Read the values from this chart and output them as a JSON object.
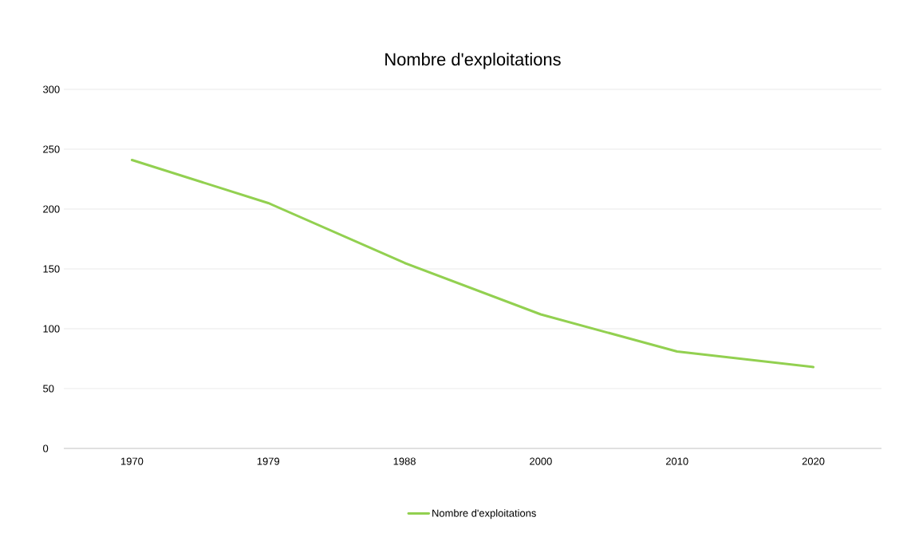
{
  "chart_data": {
    "type": "line",
    "title": "Nombre d'exploitations",
    "categories": [
      "1970",
      "1979",
      "1988",
      "2000",
      "2010",
      "2020"
    ],
    "series": [
      {
        "name": "Nombre d'exploitations",
        "color": "#92d050",
        "values": [
          241,
          205,
          155,
          112,
          81,
          68
        ]
      }
    ],
    "ylim": [
      0,
      300
    ],
    "yticks": [
      0,
      50,
      100,
      150,
      200,
      250,
      300
    ],
    "grid": "y",
    "legend": "bottom",
    "marker": "none",
    "line_style": "solid"
  }
}
